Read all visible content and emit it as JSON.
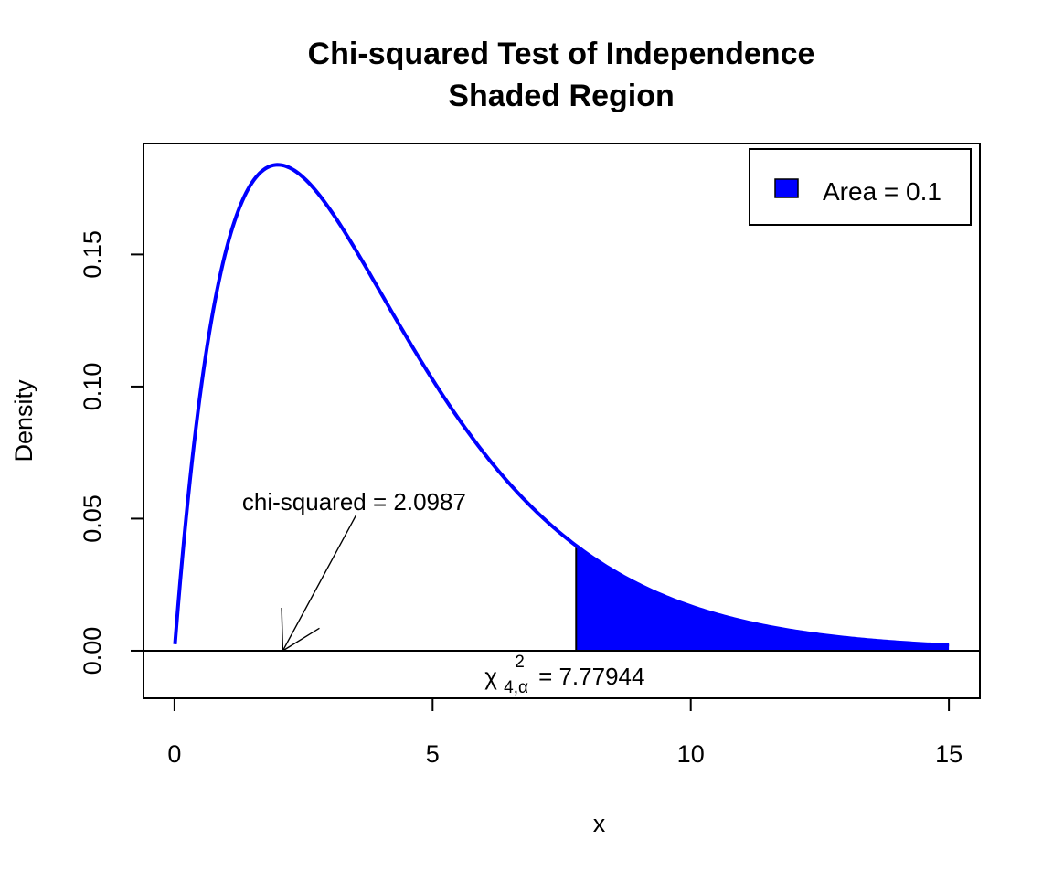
{
  "chart_data": {
    "type": "area",
    "title": "Chi-squared Test of Independence",
    "subtitle": "Shaded Region",
    "xlabel": "x",
    "ylabel": "Density",
    "xlim": [
      -0.6,
      15.6
    ],
    "ylim": [
      -0.018,
      0.192
    ],
    "x_ticks": [
      0,
      5,
      10,
      15
    ],
    "x_tick_labels": [
      "0",
      "5",
      "10",
      "15"
    ],
    "y_ticks": [
      0.0,
      0.05,
      0.1,
      0.15
    ],
    "y_tick_labels": [
      "0.00",
      "0.05",
      "0.10",
      "0.15"
    ],
    "grid": false,
    "distribution": {
      "name": "chi-squared",
      "df": 4,
      "x_range": [
        0,
        15
      ],
      "curve_color": "#0000ff"
    },
    "shaded_region": {
      "x_start": 7.77944,
      "x_end": 15,
      "fill_color": "#0000ff"
    },
    "legend": {
      "position": "top-right",
      "entries": [
        {
          "label": "Area = 0.1",
          "color": "#0000ff"
        }
      ]
    },
    "annotations": {
      "statistic_label": "chi-squared = 2.0987",
      "statistic_value": 2.0987,
      "critical_symbol": "χ",
      "critical_subscript": "4,α",
      "critical_superscript": "2",
      "critical_value_text": "= 7.77944",
      "critical_value": 7.77944
    }
  }
}
